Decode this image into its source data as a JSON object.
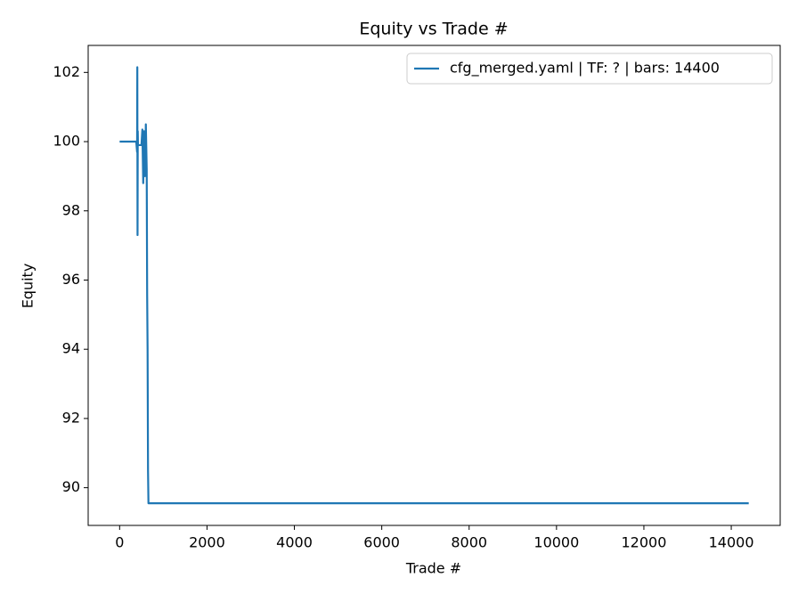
{
  "chart_data": {
    "type": "line",
    "title": "Equity vs Trade #",
    "x_label": "Trade #",
    "y_label": "Equity",
    "x": [
      0,
      380,
      400,
      405,
      410,
      415,
      420,
      500,
      520,
      540,
      560,
      580,
      600,
      620,
      630,
      640,
      650,
      660,
      14400
    ],
    "series": [
      {
        "name": "cfg_merged.yaml | TF: ? | bars: 14400",
        "color": "#1f77b4",
        "values": [
          100,
          100,
          99.7,
          102.15,
          97.3,
          100.3,
          99.9,
          99.9,
          100.35,
          98.8,
          100.3,
          99.0,
          100.5,
          99.2,
          95.6,
          94.0,
          90.5,
          89.55,
          89.55
        ]
      }
    ],
    "xlim": [
      -720,
      15120
    ],
    "ylim": [
      88.91,
      102.78
    ],
    "xticks": [
      0,
      2000,
      4000,
      6000,
      8000,
      10000,
      12000,
      14000
    ],
    "yticks": [
      90,
      92,
      94,
      96,
      98,
      100,
      102
    ],
    "grid": false,
    "legend": "upper right"
  }
}
